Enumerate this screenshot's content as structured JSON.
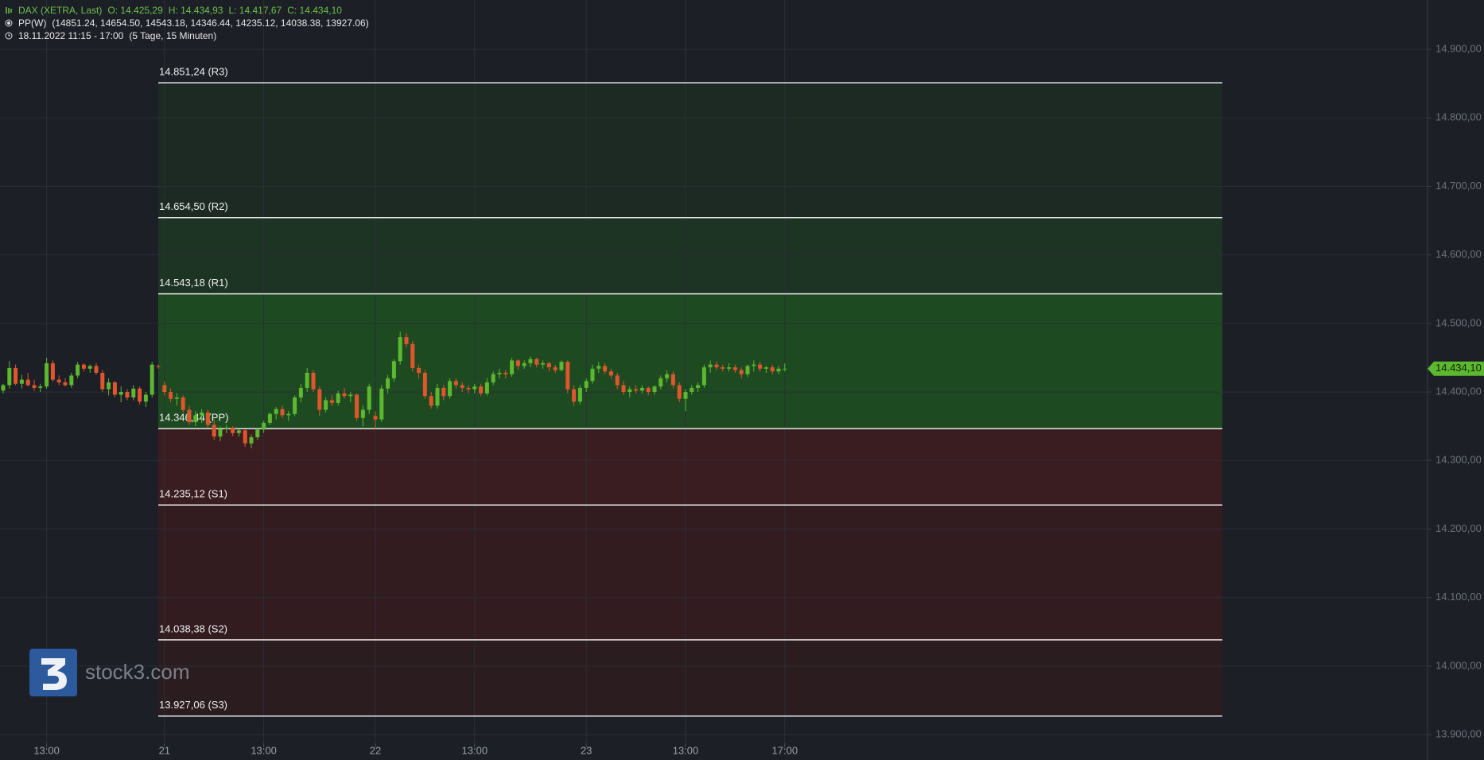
{
  "chart_data": {
    "type": "candlestick",
    "header": {
      "instrument": "DAX (XETRA, Last)",
      "ohlc": [
        "O: 14.425,29",
        "H: 14.434,93",
        "L: 14.417,67",
        "C: 14.434,10"
      ],
      "indicator": "PP(W)",
      "indicator_values": "(14851.24, 14654.50, 14543.18, 14346.44, 14235.12, 14038.38, 13927.06)",
      "period": "18.11.2022 11:15 - 17:00",
      "period_detail": "(5 Tage, 15 Minuten)"
    },
    "logo_text": "stock3.com",
    "ylim": [
      13863,
      14972
    ],
    "yticks": [
      {
        "value": 13900,
        "label": "13.900,00"
      },
      {
        "value": 14000,
        "label": "14.000,00"
      },
      {
        "value": 14100,
        "label": "14.100,00"
      },
      {
        "value": 14200,
        "label": "14.200,00"
      },
      {
        "value": 14300,
        "label": "14.300,00"
      },
      {
        "value": 14400,
        "label": "14.400,00"
      },
      {
        "value": 14500,
        "label": "14.500,00"
      },
      {
        "value": 14600,
        "label": "14.600,00"
      },
      {
        "value": 14700,
        "label": "14.700,00"
      },
      {
        "value": 14800,
        "label": "14.800,00"
      },
      {
        "value": 14900,
        "label": "14.900,00"
      }
    ],
    "grid": true,
    "up_color": "#5cb82e",
    "down_color": "#e0562c",
    "pivots": [
      {
        "value": 14851.24,
        "label": "14.851,24 (R3)"
      },
      {
        "value": 14654.5,
        "label": "14.654,50 (R2)"
      },
      {
        "value": 14543.18,
        "label": "14.543,18 (R1)"
      },
      {
        "value": 14346.44,
        "label": "14.346,44 (PP)"
      },
      {
        "value": 14235.12,
        "label": "14.235,12 (S1)"
      },
      {
        "value": 14038.38,
        "label": "14.038,38 (S2)"
      },
      {
        "value": 13927.06,
        "label": "13.927,06 (S3)"
      }
    ],
    "zone_colors": [
      "#1d2a23",
      "#1d3323",
      "#1e4a22",
      "#3a1d21",
      "#321c20",
      "#2b1c20"
    ],
    "last_price": {
      "value": 14434.1,
      "label": "14.434,10"
    },
    "categories": [
      null,
      null,
      null,
      null,
      null,
      null,
      null,
      "13:00",
      null,
      null,
      null,
      null,
      null,
      null,
      null,
      null,
      null,
      null,
      null,
      null,
      null,
      null,
      null,
      null,
      null,
      null,
      "21",
      null,
      null,
      null,
      null,
      null,
      null,
      null,
      null,
      null,
      null,
      null,
      null,
      null,
      null,
      null,
      "13:00",
      null,
      null,
      null,
      null,
      null,
      null,
      null,
      null,
      null,
      null,
      null,
      null,
      null,
      null,
      null,
      null,
      null,
      "22",
      null,
      null,
      null,
      null,
      null,
      null,
      null,
      null,
      null,
      null,
      null,
      null,
      null,
      null,
      null,
      "13:00",
      null,
      null,
      null,
      null,
      null,
      null,
      null,
      null,
      null,
      null,
      null,
      null,
      null,
      null,
      null,
      null,
      null,
      "23",
      null,
      null,
      null,
      null,
      null,
      null,
      null,
      null,
      null,
      null,
      null,
      null,
      null,
      null,
      null,
      "13:00",
      null,
      null,
      null,
      null,
      null,
      null,
      null,
      null,
      null,
      null,
      null,
      null,
      null,
      null,
      null,
      "17:00"
    ],
    "candles": [
      [
        14402,
        14412,
        14398,
        14410
      ],
      [
        14410,
        14445,
        14405,
        14435
      ],
      [
        14435,
        14440,
        14410,
        14412
      ],
      [
        14412,
        14425,
        14405,
        14418
      ],
      [
        14418,
        14428,
        14408,
        14410
      ],
      [
        14410,
        14418,
        14402,
        14406
      ],
      [
        14406,
        14412,
        14400,
        14408
      ],
      [
        14408,
        14450,
        14405,
        14442
      ],
      [
        14442,
        14446,
        14415,
        14418
      ],
      [
        14418,
        14424,
        14410,
        14414
      ],
      [
        14414,
        14420,
        14408,
        14410
      ],
      [
        14410,
        14428,
        14406,
        14424
      ],
      [
        14424,
        14444,
        14420,
        14440
      ],
      [
        14440,
        14442,
        14430,
        14434
      ],
      [
        14434,
        14440,
        14428,
        14438
      ],
      [
        14438,
        14442,
        14425,
        14428
      ],
      [
        14428,
        14432,
        14400,
        14404
      ],
      [
        14404,
        14420,
        14395,
        14414
      ],
      [
        14414,
        14416,
        14392,
        14396
      ],
      [
        14396,
        14408,
        14385,
        14400
      ],
      [
        14400,
        14404,
        14388,
        14392
      ],
      [
        14392,
        14410,
        14388,
        14405
      ],
      [
        14405,
        14408,
        14382,
        14386
      ],
      [
        14386,
        14400,
        14378,
        14396
      ],
      [
        14396,
        14444,
        14392,
        14440
      ],
      [
        14438,
        14440,
        14434,
        14437
      ],
      [
        14410,
        14415,
        14395,
        14400
      ],
      [
        14400,
        14405,
        14385,
        14390
      ],
      [
        14390,
        14398,
        14380,
        14392
      ],
      [
        14392,
        14395,
        14370,
        14374
      ],
      [
        14374,
        14380,
        14352,
        14356
      ],
      [
        14356,
        14372,
        14350,
        14366
      ],
      [
        14366,
        14375,
        14355,
        14370
      ],
      [
        14370,
        14374,
        14348,
        14352
      ],
      [
        14352,
        14360,
        14330,
        14335
      ],
      [
        14335,
        14350,
        14328,
        14346
      ],
      [
        14346,
        14352,
        14340,
        14348
      ],
      [
        14348,
        14350,
        14336,
        14340
      ],
      [
        14340,
        14346,
        14335,
        14344
      ],
      [
        14344,
        14345,
        14320,
        14325
      ],
      [
        14325,
        14338,
        14318,
        14334
      ],
      [
        14334,
        14348,
        14330,
        14345
      ],
      [
        14345,
        14358,
        14340,
        14355
      ],
      [
        14355,
        14370,
        14352,
        14368
      ],
      [
        14368,
        14378,
        14360,
        14375
      ],
      [
        14375,
        14380,
        14362,
        14366
      ],
      [
        14366,
        14372,
        14358,
        14368
      ],
      [
        14368,
        14395,
        14365,
        14392
      ],
      [
        14392,
        14412,
        14385,
        14406
      ],
      [
        14406,
        14435,
        14400,
        14428
      ],
      [
        14428,
        14432,
        14400,
        14404
      ],
      [
        14404,
        14408,
        14365,
        14374
      ],
      [
        14374,
        14392,
        14370,
        14388
      ],
      [
        14388,
        14396,
        14380,
        14384
      ],
      [
        14384,
        14402,
        14380,
        14398
      ],
      [
        14398,
        14406,
        14390,
        14394
      ],
      [
        14394,
        14400,
        14385,
        14396
      ],
      [
        14396,
        14398,
        14358,
        14362
      ],
      [
        14362,
        14380,
        14350,
        14374
      ],
      [
        14374,
        14412,
        14368,
        14408
      ],
      [
        14365,
        14372,
        14345,
        14360
      ],
      [
        14360,
        14410,
        14356,
        14405
      ],
      [
        14405,
        14425,
        14398,
        14420
      ],
      [
        14420,
        14448,
        14415,
        14445
      ],
      [
        14445,
        14488,
        14440,
        14480
      ],
      [
        14480,
        14486,
        14465,
        14470
      ],
      [
        14470,
        14474,
        14430,
        14435
      ],
      [
        14435,
        14440,
        14420,
        14428
      ],
      [
        14428,
        14432,
        14390,
        14394
      ],
      [
        14394,
        14400,
        14376,
        14380
      ],
      [
        14380,
        14412,
        14376,
        14406
      ],
      [
        14406,
        14410,
        14388,
        14394
      ],
      [
        14394,
        14420,
        14390,
        14416
      ],
      [
        14416,
        14420,
        14405,
        14410
      ],
      [
        14410,
        14414,
        14400,
        14406
      ],
      [
        14406,
        14410,
        14398,
        14404
      ],
      [
        14404,
        14412,
        14398,
        14408
      ],
      [
        14408,
        14412,
        14394,
        14398
      ],
      [
        14398,
        14420,
        14395,
        14414
      ],
      [
        14414,
        14430,
        14410,
        14426
      ],
      [
        14426,
        14434,
        14420,
        14428
      ],
      [
        14428,
        14432,
        14420,
        14426
      ],
      [
        14426,
        14450,
        14422,
        14446
      ],
      [
        14446,
        14448,
        14432,
        14438
      ],
      [
        14438,
        14446,
        14434,
        14442
      ],
      [
        14442,
        14452,
        14436,
        14448
      ],
      [
        14448,
        14450,
        14436,
        14440
      ],
      [
        14440,
        14446,
        14434,
        14442
      ],
      [
        14442,
        14444,
        14430,
        14436
      ],
      [
        14436,
        14440,
        14428,
        14432
      ],
      [
        14432,
        14446,
        14430,
        14444
      ],
      [
        14444,
        14446,
        14398,
        14404
      ],
      [
        14404,
        14410,
        14380,
        14386
      ],
      [
        14386,
        14410,
        14382,
        14406
      ],
      [
        14406,
        14420,
        14400,
        14416
      ],
      [
        14416,
        14440,
        14412,
        14434
      ],
      [
        14434,
        14444,
        14428,
        14438
      ],
      [
        14438,
        14442,
        14426,
        14430
      ],
      [
        14430,
        14434,
        14420,
        14424
      ],
      [
        14424,
        14428,
        14404,
        14410
      ],
      [
        14410,
        14416,
        14396,
        14400
      ],
      [
        14400,
        14408,
        14392,
        14404
      ],
      [
        14404,
        14410,
        14398,
        14402
      ],
      [
        14402,
        14410,
        14398,
        14406
      ],
      [
        14406,
        14408,
        14395,
        14400
      ],
      [
        14400,
        14410,
        14396,
        14408
      ],
      [
        14408,
        14424,
        14404,
        14420
      ],
      [
        14420,
        14432,
        14414,
        14426
      ],
      [
        14426,
        14430,
        14405,
        14410
      ],
      [
        14410,
        14414,
        14385,
        14390
      ],
      [
        14390,
        14404,
        14372,
        14400
      ],
      [
        14400,
        14410,
        14396,
        14406
      ],
      [
        14406,
        14414,
        14400,
        14410
      ],
      [
        14410,
        14440,
        14406,
        14436
      ],
      [
        14436,
        14446,
        14428,
        14440
      ],
      [
        14440,
        14444,
        14432,
        14436
      ],
      [
        14436,
        14440,
        14430,
        14434
      ],
      [
        14434,
        14442,
        14430,
        14436
      ],
      [
        14436,
        14440,
        14428,
        14432
      ],
      [
        14432,
        14436,
        14420,
        14426
      ],
      [
        14426,
        14440,
        14422,
        14438
      ],
      [
        14438,
        14446,
        14430,
        14440
      ],
      [
        14440,
        14444,
        14430,
        14434
      ],
      [
        14434,
        14438,
        14428,
        14436
      ],
      [
        14436,
        14440,
        14426,
        14430
      ],
      [
        14430,
        14438,
        14426,
        14434
      ],
      [
        14434,
        14442,
        14430,
        14434
      ]
    ]
  }
}
